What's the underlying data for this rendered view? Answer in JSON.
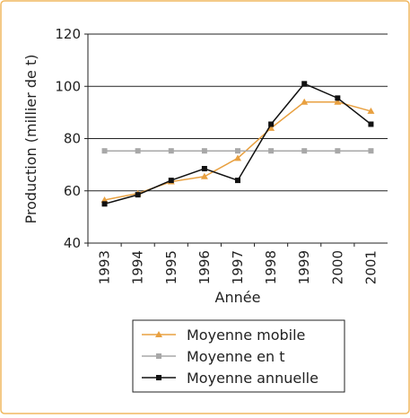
{
  "chart_data": {
    "type": "line",
    "y_label": "Production (millier de t)",
    "x_label": "Année",
    "categories": [
      "1993",
      "1994",
      "1995",
      "1996",
      "1997",
      "1998",
      "1999",
      "2000",
      "2001"
    ],
    "series": [
      {
        "name": "Moyenne mobile",
        "color": "#e8a040",
        "marker": "triangle",
        "values": [
          56.5,
          59,
          63.5,
          65.5,
          72.5,
          84,
          94,
          94,
          90.5
        ]
      },
      {
        "name": "Moyenne en t",
        "color": "#a8a8a8",
        "marker": "square",
        "values": [
          75.3,
          75.3,
          75.3,
          75.3,
          75.3,
          75.3,
          75.3,
          75.3,
          75.3
        ]
      },
      {
        "name": "Moyenne annuelle",
        "color": "#111111",
        "marker": "square",
        "values": [
          55,
          58.5,
          64,
          68.5,
          64,
          85.5,
          101,
          95.5,
          85.5
        ]
      }
    ],
    "ylim": [
      40,
      120
    ],
    "yticks": [
      40,
      60,
      80,
      100,
      120
    ],
    "grid": true
  }
}
